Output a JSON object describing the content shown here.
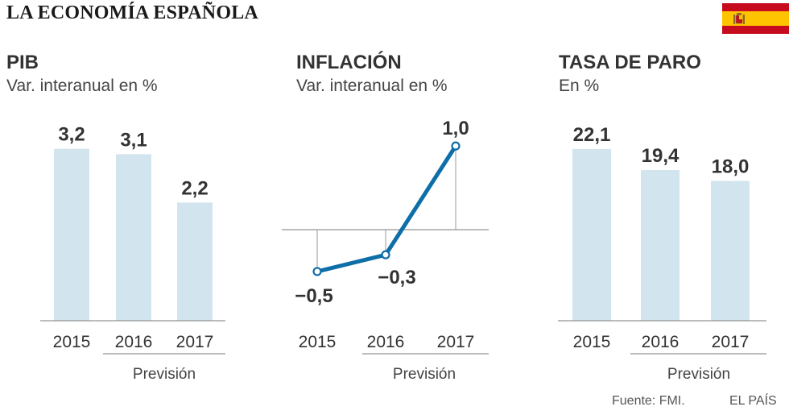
{
  "main_title": "LA ECONOMÍA ESPAÑOLA",
  "flag_colors": {
    "red": "#c60b1e",
    "yellow": "#ffc400"
  },
  "colors": {
    "bar": "#d2e5ee",
    "line": "#0d6ea8",
    "axis": "#7a7a7a"
  },
  "chart_data": [
    {
      "type": "bar",
      "title": "PIB",
      "subtitle": "Var. interanual en %",
      "categories": [
        "2015",
        "2016",
        "2017"
      ],
      "values": [
        3.2,
        3.1,
        2.2
      ],
      "value_labels": [
        "3,2",
        "3,1",
        "2,2"
      ],
      "ylim": [
        0,
        3.6
      ],
      "forecast_label": "Previsión"
    },
    {
      "type": "line",
      "title": "INFLACIÓN",
      "subtitle": "Var. interanual en %",
      "categories": [
        "2015",
        "2016",
        "2017"
      ],
      "values": [
        -0.5,
        -0.3,
        1.0
      ],
      "value_labels": [
        "−0,5",
        "−0,3",
        "1,0"
      ],
      "ylim": [
        -1.0,
        1.3
      ],
      "forecast_label": "Previsión"
    },
    {
      "type": "bar",
      "title": "TASA DE PARO",
      "subtitle": "En %",
      "categories": [
        "2015",
        "2016",
        "2017"
      ],
      "values": [
        22.1,
        19.4,
        18.0
      ],
      "value_labels": [
        "22,1",
        "19,4",
        "18,0"
      ],
      "ylim": [
        0,
        24.9
      ],
      "forecast_label": "Previsión"
    }
  ],
  "footer": {
    "source": "Fuente: FMI.",
    "brand": "EL PAÍS"
  }
}
